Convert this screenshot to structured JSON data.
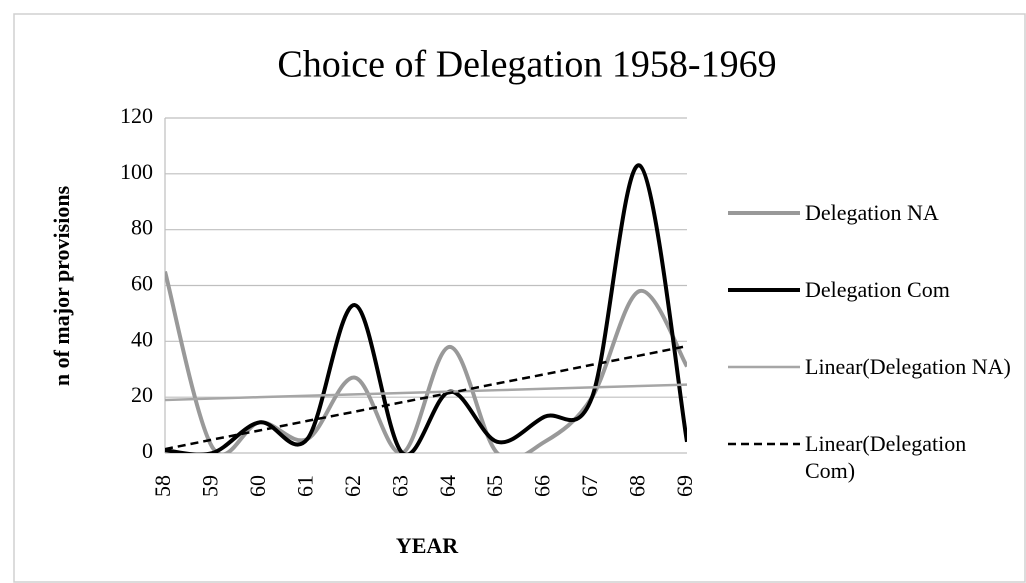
{
  "chart_data": {
    "type": "line",
    "title": "Choice of Delegation 1958-1969",
    "x_label": "YEAR",
    "y_label": "n of major provisions",
    "categories": [
      "58",
      "59",
      "60",
      "61",
      "62",
      "63",
      "64",
      "65",
      "66",
      "67",
      "68",
      "69"
    ],
    "series": [
      {
        "name": "Delegation NA",
        "color": "#999999",
        "smooth": true,
        "dashed": false,
        "values": [
          65,
          2,
          11,
          5,
          27,
          0,
          38,
          0,
          4,
          20,
          58,
          31
        ]
      },
      {
        "name": "Delegation Com",
        "color": "#000000",
        "smooth": true,
        "dashed": false,
        "values": [
          1,
          0,
          11,
          5,
          53,
          0,
          22,
          4,
          13,
          20,
          103,
          4
        ]
      },
      {
        "name": "Linear(Delegation NA)",
        "color": "#a6a6a6",
        "smooth": false,
        "dashed": false,
        "values": [
          19.0,
          19.5,
          20.0,
          20.5,
          21.0,
          21.5,
          22.0,
          22.5,
          23.0,
          23.5,
          24.0,
          24.5
        ]
      },
      {
        "name": "Linear(Delegation Com)",
        "color": "#000000",
        "smooth": false,
        "dashed": true,
        "values": [
          1.4,
          4.8,
          8.1,
          11.5,
          14.8,
          18.2,
          21.5,
          24.9,
          28.2,
          31.6,
          34.9,
          38.3
        ]
      }
    ],
    "ylim": [
      0,
      120
    ],
    "yticks": [
      0,
      20,
      40,
      60,
      80,
      100,
      120
    ],
    "grid": true,
    "legend": "right"
  }
}
